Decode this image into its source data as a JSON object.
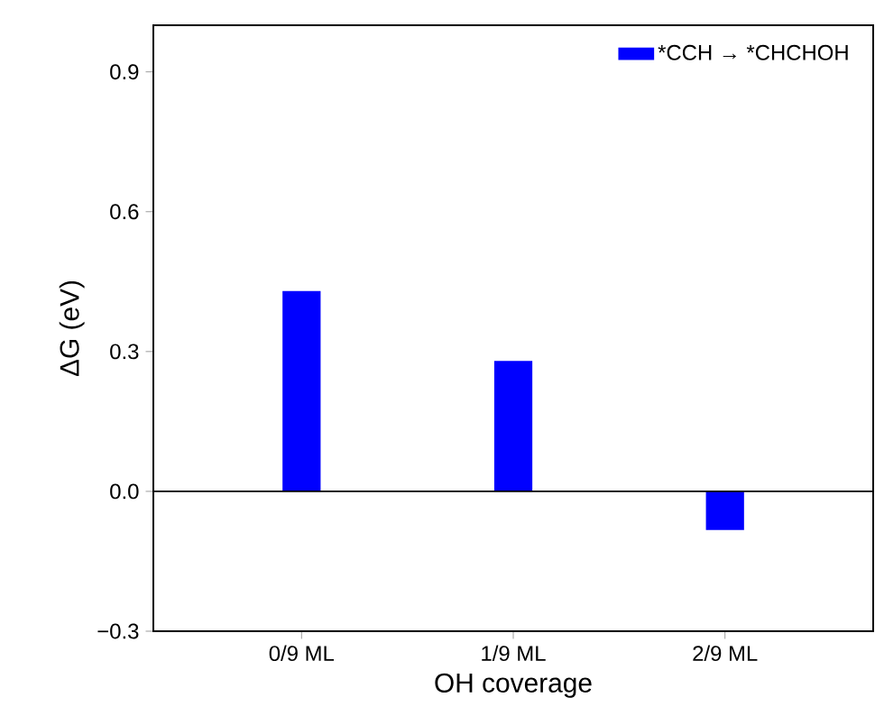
{
  "chart_data": {
    "type": "bar",
    "xlabel": "OH coverage",
    "ylabel": "ΔG (eV)",
    "categories": [
      "0/9 ML",
      "1/9 ML",
      "2/9 ML"
    ],
    "series": [
      {
        "name": "*CCH → *CHCHOH",
        "color": "#0000ff",
        "values": [
          0.43,
          0.28,
          -0.083
        ]
      }
    ],
    "ylim": [
      -0.3,
      1.0
    ],
    "yticks": [
      {
        "value": -0.3,
        "label": "−0.3"
      },
      {
        "value": 0,
        "label": "0.0"
      },
      0.3,
      0.6,
      0.9
    ],
    "ref_lines": [
      {
        "axis": "y",
        "value": 0,
        "color": "#000000"
      }
    ],
    "legend": "top right"
  }
}
